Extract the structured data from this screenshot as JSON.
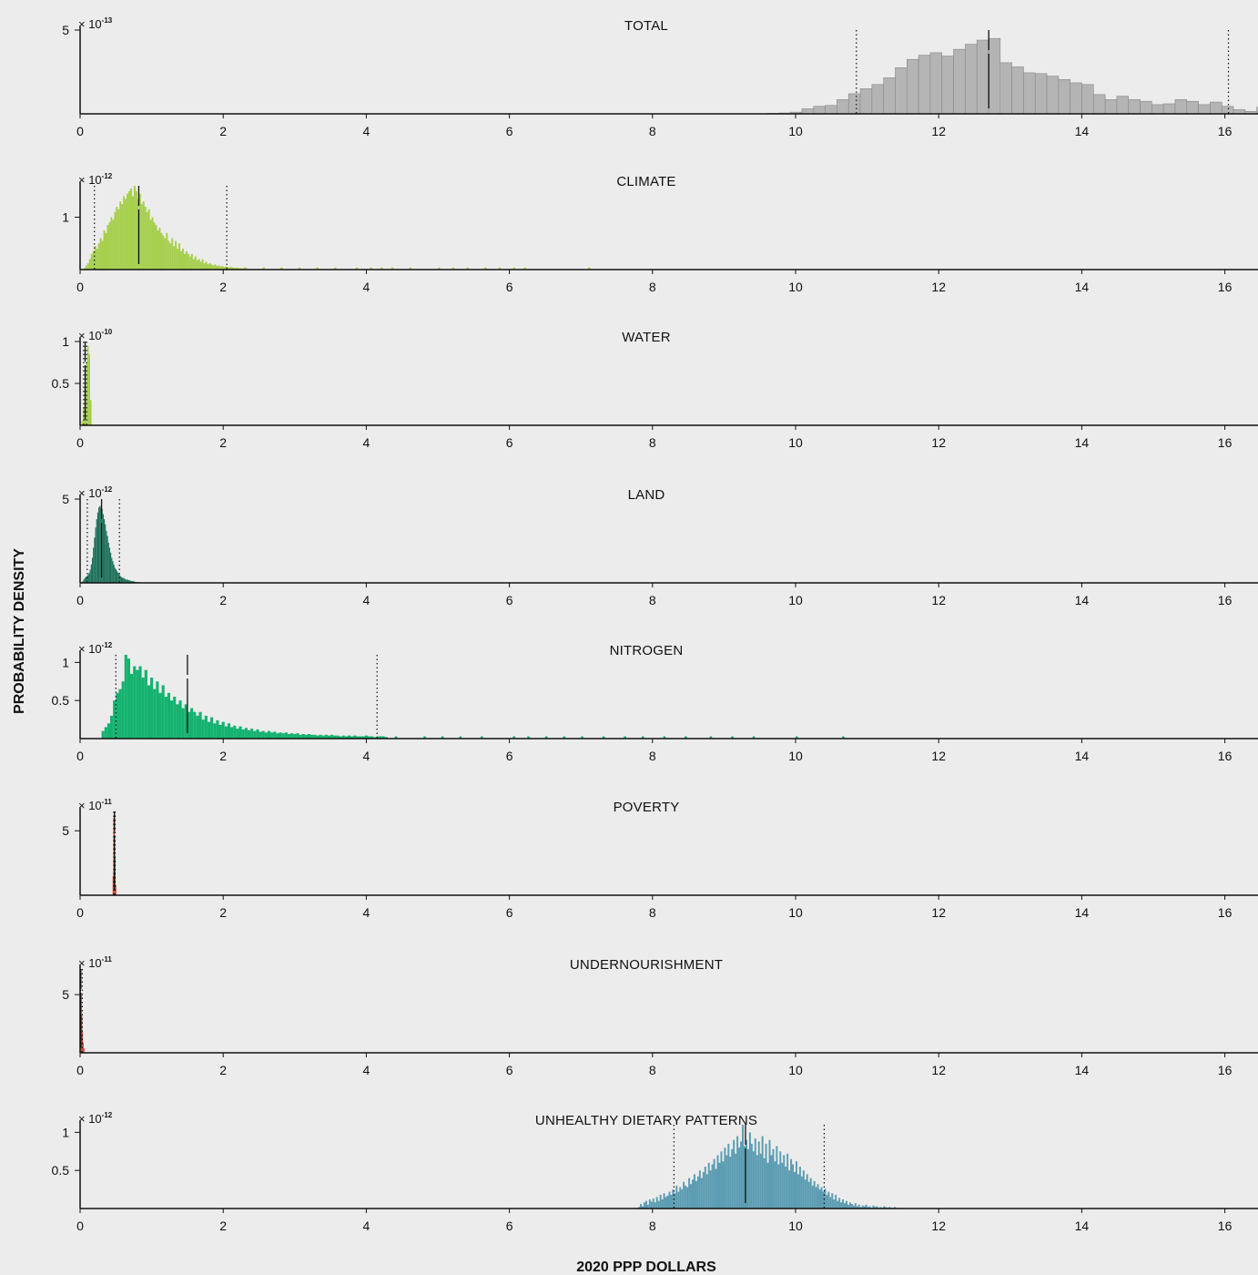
{
  "figure": {
    "ylabel": "PROBABILITY DENSITY",
    "xlabel": "2020 PPP DOLLARS",
    "x_ticks": [
      0,
      2,
      4,
      6,
      8,
      10,
      12,
      14,
      16
    ],
    "xlim": [
      0,
      16.5
    ],
    "background": "#ececec"
  },
  "chart_data": [
    {
      "type": "histogram",
      "title": "TOTAL",
      "color": "#b4b4b4",
      "edge": "#888888",
      "sci_multiplier": "× 10",
      "sci_exponent": "-13",
      "ylim": [
        0,
        5
      ],
      "y_ticks": [
        5
      ],
      "y_tick_labels": [
        "5"
      ],
      "bin_start": 9.6,
      "bin_width": 0.163,
      "densities": [
        0.03,
        0.05,
        0.1,
        0.3,
        0.45,
        0.5,
        0.85,
        1.2,
        1.5,
        1.75,
        2.15,
        2.75,
        3.25,
        3.5,
        3.65,
        3.45,
        3.85,
        4.15,
        4.4,
        4.5,
        3.05,
        2.8,
        2.45,
        2.4,
        2.25,
        2.05,
        1.85,
        1.75,
        1.15,
        0.85,
        1.05,
        0.85,
        0.75,
        0.55,
        0.6,
        0.85,
        0.75,
        0.55,
        0.7,
        0.45,
        0.25,
        0.15,
        0.4,
        0.15,
        0.3,
        0.25,
        0.1,
        0.2
      ],
      "mean": 12.7,
      "ci": [
        10.85,
        16.05
      ]
    },
    {
      "type": "histogram",
      "title": "CLIMATE",
      "color": "#a6cf4c",
      "sci_multiplier": "× 10",
      "sci_exponent": "-12",
      "ylim": [
        0,
        1.6
      ],
      "y_ticks": [
        1
      ],
      "y_tick_labels": [
        "1"
      ],
      "bin_start": 0.05,
      "bin_width": 0.025,
      "densities": [
        0.03,
        0.08,
        0.12,
        0.2,
        0.3,
        0.35,
        0.45,
        0.4,
        0.5,
        0.6,
        0.55,
        0.75,
        0.7,
        0.85,
        0.9,
        1.0,
        0.95,
        1.1,
        1.2,
        1.15,
        1.3,
        1.25,
        1.4,
        1.35,
        1.45,
        1.5,
        1.55,
        1.4,
        1.6,
        1.5,
        1.35,
        1.45,
        1.25,
        1.3,
        1.2,
        1.1,
        1.15,
        0.95,
        1.0,
        0.9,
        0.85,
        0.75,
        0.8,
        0.7,
        0.65,
        0.6,
        0.7,
        0.55,
        0.5,
        0.6,
        0.45,
        0.55,
        0.4,
        0.5,
        0.35,
        0.4,
        0.3,
        0.35,
        0.3,
        0.25,
        0.3,
        0.2,
        0.25,
        0.18,
        0.2,
        0.15,
        0.2,
        0.12,
        0.15,
        0.1,
        0.12,
        0.1,
        0.08,
        0.1,
        0.07,
        0.08,
        0.06,
        0.07,
        0.05,
        0.06,
        0.05,
        0.04,
        0.05,
        0.04,
        0.03,
        0.04,
        0.03,
        0.03,
        0.02,
        0.03
      ],
      "sparse_x": [
        2.3,
        2.55,
        2.8,
        3.05,
        3.3,
        3.55,
        3.85,
        4.05,
        4.2,
        4.35,
        4.6,
        5.0,
        5.2,
        5.4,
        5.65,
        5.85,
        6.05,
        6.2,
        7.1
      ],
      "sparse_y": 0.04,
      "mean": 0.82,
      "ci": [
        0.2,
        2.05
      ]
    },
    {
      "type": "histogram",
      "title": "WATER",
      "color": "#a6cf4c",
      "sci_multiplier": "× 10",
      "sci_exponent": "-10",
      "ylim": [
        0,
        1
      ],
      "y_ticks": [
        1,
        0.5
      ],
      "y_tick_labels": [
        "1",
        "0.5"
      ],
      "bin_start": 0.02,
      "bin_width": 0.02,
      "densities": [
        0.05,
        0.2,
        0.45,
        0.75,
        0.95,
        0.85,
        0.3
      ],
      "mean": 0.07,
      "ci": [
        0.05,
        0.09
      ]
    },
    {
      "type": "histogram",
      "title": "LAND",
      "color": "#1d6f5a",
      "sci_multiplier": "× 10",
      "sci_exponent": "-12",
      "ylim": [
        0,
        5
      ],
      "y_ticks": [
        5
      ],
      "y_tick_labels": [
        "5"
      ],
      "bin_start": 0.03,
      "bin_width": 0.015,
      "densities": [
        0.1,
        0.2,
        0.3,
        0.35,
        0.4,
        0.5,
        0.6,
        0.8,
        1.1,
        1.5,
        2.1,
        2.7,
        3.3,
        3.8,
        4.2,
        4.5,
        4.6,
        4.5,
        4.4,
        4.1,
        3.8,
        3.5,
        3.1,
        2.8,
        2.4,
        2.1,
        1.8,
        1.5,
        1.3,
        1.1,
        0.9,
        0.8,
        0.7,
        0.6,
        0.5,
        0.4,
        0.35,
        0.3,
        0.3,
        0.25,
        0.2,
        0.2,
        0.18,
        0.15,
        0.15,
        0.12,
        0.1,
        0.1,
        0.08,
        0.06,
        0.05,
        0.05,
        0.04,
        0.04,
        0.03,
        0.03,
        0.02,
        0.02,
        0.02,
        0.02,
        0.01,
        0.01,
        0.01,
        0.01,
        0.01,
        0.01,
        0.01
      ],
      "mean": 0.3,
      "ci": [
        0.1,
        0.55
      ]
    },
    {
      "type": "histogram",
      "title": "NITROGEN",
      "color": "#13b26f",
      "sci_multiplier": "× 10",
      "sci_exponent": "-12",
      "ylim": [
        0,
        1.1
      ],
      "y_ticks": [
        1,
        0.5
      ],
      "y_tick_labels": [
        "1",
        "0.5"
      ],
      "bin_start": 0.3,
      "bin_width": 0.04,
      "densities": [
        0.1,
        0.15,
        0.2,
        0.3,
        0.5,
        0.6,
        0.65,
        0.75,
        1.1,
        1.05,
        0.85,
        0.95,
        0.9,
        0.95,
        0.8,
        0.9,
        0.7,
        0.8,
        0.65,
        0.75,
        0.6,
        0.7,
        0.55,
        0.6,
        0.5,
        0.55,
        0.45,
        0.5,
        0.4,
        0.45,
        0.35,
        0.4,
        0.35,
        0.3,
        0.35,
        0.25,
        0.3,
        0.22,
        0.28,
        0.2,
        0.24,
        0.18,
        0.22,
        0.16,
        0.2,
        0.15,
        0.17,
        0.13,
        0.16,
        0.12,
        0.14,
        0.11,
        0.13,
        0.1,
        0.12,
        0.09,
        0.1,
        0.08,
        0.1,
        0.08,
        0.09,
        0.07,
        0.08,
        0.07,
        0.08,
        0.06,
        0.07,
        0.06,
        0.07,
        0.05,
        0.06,
        0.05,
        0.06,
        0.05,
        0.05,
        0.04,
        0.05,
        0.04,
        0.05,
        0.04,
        0.05,
        0.04,
        0.04,
        0.03,
        0.04,
        0.03,
        0.04,
        0.03,
        0.04,
        0.03,
        0.03,
        0.03,
        0.04,
        0.03,
        0.03,
        0.02,
        0.03,
        0.03,
        0.03,
        0.02
      ],
      "sparse_x": [
        4.4,
        4.8,
        5.05,
        5.3,
        5.6,
        6.05,
        6.25,
        6.5,
        6.75,
        7.0,
        7.3,
        7.6,
        7.85,
        8.15,
        8.45,
        8.8,
        9.1,
        9.4,
        10.0,
        10.65
      ],
      "sparse_y": 0.03,
      "mean": 1.5,
      "ci": [
        0.5,
        4.15
      ]
    },
    {
      "type": "histogram",
      "title": "POVERTY",
      "color": "#c9392a",
      "sci_multiplier": "× 10",
      "sci_exponent": "-11",
      "ylim": [
        0,
        6.5
      ],
      "y_ticks": [
        5
      ],
      "y_tick_labels": [
        "5"
      ],
      "bin_start": 0.455,
      "bin_width": 0.01,
      "densities": [
        1.5,
        6.0,
        6.3,
        3.0,
        0.8
      ],
      "mean": 0.48,
      "ci": [
        0.47,
        0.49
      ]
    },
    {
      "type": "histogram",
      "title": "UNDERNOURISHMENT",
      "color": "#c9392a",
      "sci_multiplier": "× 10",
      "sci_exponent": "-11",
      "ylim": [
        0,
        7.2
      ],
      "y_ticks": [
        5
      ],
      "y_tick_labels": [
        "5"
      ],
      "bin_start": 0.0,
      "bin_width": 0.01,
      "densities": [
        6.5,
        5.0,
        3.2,
        1.8,
        0.9,
        0.4
      ],
      "mean": 0.01,
      "ci": [
        0.003,
        0.03
      ]
    },
    {
      "type": "histogram",
      "title": "UNHEALTHY DIETARY PATTERNS",
      "color": "#5b9cb2",
      "sci_multiplier": "× 10",
      "sci_exponent": "-12",
      "ylim": [
        0,
        1.1
      ],
      "y_ticks": [
        1,
        0.5
      ],
      "y_tick_labels": [
        "1",
        "0.5"
      ],
      "bin_start": 7.8,
      "bin_width": 0.025,
      "densities": [
        0.02,
        0.06,
        0.03,
        0.08,
        0.1,
        0.05,
        0.12,
        0.09,
        0.13,
        0.08,
        0.15,
        0.1,
        0.18,
        0.12,
        0.2,
        0.15,
        0.17,
        0.22,
        0.18,
        0.25,
        0.2,
        0.3,
        0.22,
        0.28,
        0.25,
        0.35,
        0.3,
        0.28,
        0.4,
        0.32,
        0.38,
        0.45,
        0.36,
        0.42,
        0.5,
        0.4,
        0.48,
        0.55,
        0.45,
        0.6,
        0.5,
        0.58,
        0.65,
        0.52,
        0.7,
        0.6,
        0.75,
        0.62,
        0.8,
        0.7,
        0.85,
        0.68,
        0.78,
        0.9,
        0.72,
        0.95,
        0.8,
        0.88,
        1.1,
        0.82,
        0.9,
        0.78,
        1.0,
        0.85,
        0.75,
        0.92,
        0.7,
        0.88,
        0.72,
        0.95,
        0.66,
        0.85,
        0.6,
        0.9,
        0.7,
        0.78,
        0.62,
        0.82,
        0.58,
        0.75,
        0.6,
        0.7,
        0.55,
        0.72,
        0.5,
        0.65,
        0.58,
        0.48,
        0.62,
        0.45,
        0.55,
        0.42,
        0.5,
        0.38,
        0.45,
        0.35,
        0.4,
        0.3,
        0.36,
        0.28,
        0.32,
        0.25,
        0.28,
        0.22,
        0.26,
        0.18,
        0.22,
        0.15,
        0.2,
        0.12,
        0.18,
        0.1,
        0.14,
        0.08,
        0.12,
        0.07,
        0.1,
        0.05,
        0.08,
        0.06,
        0.04,
        0.07,
        0.03,
        0.05,
        0.02,
        0.04,
        0.03,
        0.05,
        0.02,
        0.03,
        0.01,
        0.04,
        0.02,
        0.03,
        0.01,
        0.02,
        0.01,
        0.03,
        0.02,
        0.01,
        0.02,
        0.01,
        0.01,
        0.02,
        0.01
      ],
      "mean": 9.3,
      "ci": [
        8.3,
        10.4
      ]
    }
  ]
}
